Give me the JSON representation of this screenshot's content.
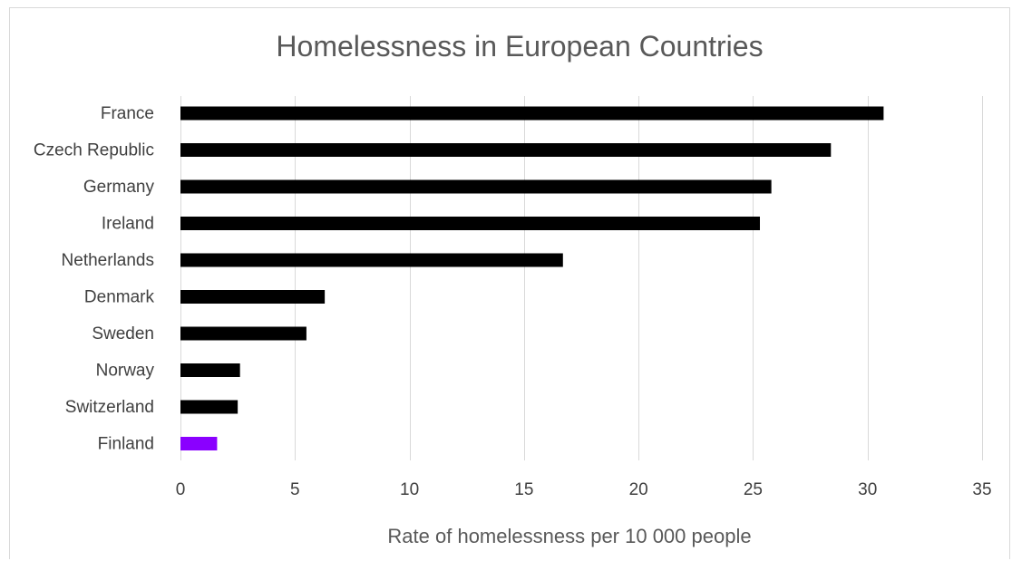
{
  "chart_data": {
    "type": "bar",
    "orientation": "horizontal",
    "title": "Homelessness in European Countries",
    "xlabel": "Rate of homelessness per 10 000 people",
    "ylabel": "",
    "categories": [
      "France",
      "Czech Republic",
      "Germany",
      "Ireland",
      "Netherlands",
      "Denmark",
      "Sweden",
      "Norway",
      "Switzerland",
      "Finland"
    ],
    "values": [
      30.7,
      28.4,
      25.8,
      25.3,
      16.7,
      6.3,
      5.5,
      2.6,
      2.5,
      1.6
    ],
    "xlim": [
      0,
      35
    ],
    "xticks": [
      0,
      5,
      10,
      15,
      20,
      25,
      30,
      35
    ],
    "grid": "vertical",
    "legend": "none",
    "colors": {
      "default_bar": "#000000",
      "highlight_bar": "#8a00ff",
      "highlight_category": "Finland"
    }
  }
}
